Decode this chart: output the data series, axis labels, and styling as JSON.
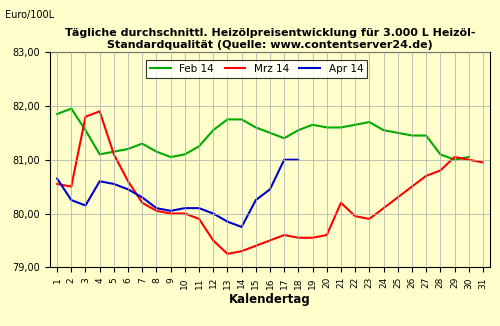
{
  "title": "Tägliche durchschnittl. Heizölpreisentwicklung für 3.000 L Heizöl-\nStandardqualität (Quelle: www.contentserver24.de)",
  "ylabel": "Euro/100L",
  "xlabel": "Kalendertag",
  "ylim": [
    79.0,
    83.0
  ],
  "xlim": [
    1,
    31
  ],
  "yticks": [
    79.0,
    80.0,
    81.0,
    82.0,
    83.0
  ],
  "ytick_labels": [
    "79,00",
    "80,00",
    "81,00",
    "82,00",
    "83,00"
  ],
  "xticks": [
    1,
    2,
    3,
    4,
    5,
    6,
    7,
    8,
    9,
    10,
    11,
    12,
    13,
    14,
    15,
    16,
    17,
    18,
    19,
    20,
    21,
    22,
    23,
    24,
    25,
    26,
    27,
    28,
    29,
    30,
    31
  ],
  "background_color": "#FFFFCC",
  "grid_color": "#AAAAAA",
  "feb14": [
    81.85,
    81.95,
    81.55,
    81.1,
    81.15,
    81.2,
    81.3,
    81.15,
    81.05,
    81.1,
    81.25,
    81.55,
    81.75,
    81.75,
    81.6,
    81.5,
    81.4,
    81.55,
    81.65,
    81.6,
    81.6,
    81.65,
    81.7,
    81.55,
    81.5,
    81.45,
    81.45,
    81.1,
    81.0,
    81.05,
    null
  ],
  "mrz14": [
    80.55,
    80.5,
    81.8,
    81.9,
    81.1,
    80.6,
    80.2,
    80.05,
    80.0,
    80.0,
    79.9,
    79.5,
    79.25,
    79.3,
    79.4,
    79.5,
    79.6,
    79.55,
    79.55,
    79.6,
    80.2,
    79.95,
    79.9,
    80.1,
    80.3,
    80.5,
    80.7,
    80.8,
    81.05,
    81.0,
    80.95
  ],
  "apr14": [
    80.65,
    80.25,
    80.15,
    80.6,
    80.55,
    80.45,
    80.3,
    80.1,
    80.05,
    80.1,
    80.1,
    80.0,
    79.85,
    79.75,
    80.25,
    80.45,
    81.0,
    81.0,
    null,
    null,
    null,
    null,
    null,
    null,
    null,
    null,
    null,
    null,
    null,
    null,
    null
  ],
  "feb14_color": "#00AA00",
  "mrz14_color": "#FF0000",
  "apr14_color": "#0000CC",
  "line_width": 1.5,
  "legend_labels": [
    "Feb 14",
    "Mrz 14",
    "Apr 14"
  ]
}
